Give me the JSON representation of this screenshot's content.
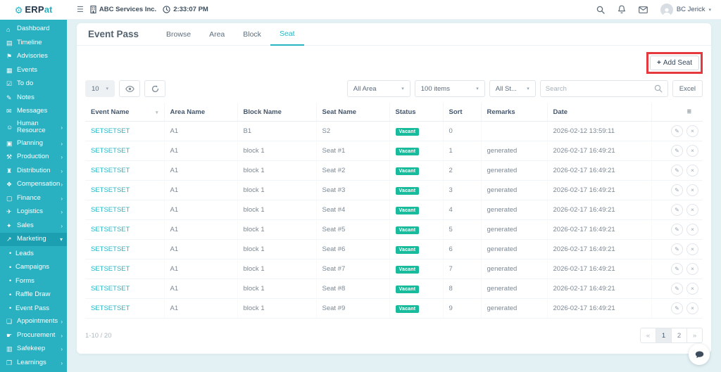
{
  "brand": {
    "primary": "ERP",
    "secondary": "at"
  },
  "topbar": {
    "company": "ABC Services Inc.",
    "time": "2:33:07 PM",
    "user": "BC Jerick"
  },
  "sidebar": {
    "items": [
      {
        "icon": "dashboard-icon",
        "label": "Dashboard"
      },
      {
        "icon": "timeline-icon",
        "label": "Timeline"
      },
      {
        "icon": "advisories-icon",
        "label": "Advisories"
      },
      {
        "icon": "events-icon",
        "label": "Events"
      },
      {
        "icon": "todo-icon",
        "label": "To do"
      },
      {
        "icon": "notes-icon",
        "label": "Notes"
      },
      {
        "icon": "messages-icon",
        "label": "Messages"
      },
      {
        "icon": "human-resource-icon",
        "label": "Human Resource",
        "chevron": true
      },
      {
        "icon": "planning-icon",
        "label": "Planning",
        "chevron": true
      },
      {
        "icon": "production-icon",
        "label": "Production",
        "chevron": true
      },
      {
        "icon": "distribution-icon",
        "label": "Distribution",
        "chevron": true
      },
      {
        "icon": "compensation-icon",
        "label": "Compensation",
        "chevron": true
      },
      {
        "icon": "finance-icon",
        "label": "Finance",
        "chevron": true
      },
      {
        "icon": "logistics-icon",
        "label": "Logistics",
        "chevron": true
      },
      {
        "icon": "sales-icon",
        "label": "Sales",
        "chevron": true
      },
      {
        "icon": "marketing-icon",
        "label": "Marketing",
        "chevron": true,
        "expanded": true,
        "active": true,
        "children": [
          "Leads",
          "Campaigns",
          "Forms",
          "Raffle Draw",
          "Event Pass"
        ]
      },
      {
        "icon": "appointments-icon",
        "label": "Appointments",
        "chevron": true
      },
      {
        "icon": "procurement-icon",
        "label": "Procurement",
        "chevron": true
      },
      {
        "icon": "safekeep-icon",
        "label": "Safekeep",
        "chevron": true
      },
      {
        "icon": "learnings-icon",
        "label": "Learnings",
        "chevron": true
      }
    ]
  },
  "page": {
    "title": "Event Pass",
    "tabs": [
      {
        "label": "Browse"
      },
      {
        "label": "Area"
      },
      {
        "label": "Block"
      },
      {
        "label": "Seat",
        "active": true
      }
    ],
    "add_seat_label": "Add Seat"
  },
  "toolbar": {
    "page_size": "10",
    "area_filter": "All Area",
    "items_filter": "100 items",
    "status_filter": "All St...",
    "search_placeholder": "Search",
    "excel_label": "Excel"
  },
  "table": {
    "columns": [
      "Event Name",
      "Area Name",
      "Block Name",
      "Seat Name",
      "Status",
      "Sort",
      "Remarks",
      "Date"
    ],
    "rows": [
      {
        "event": "SETSETSET",
        "area": "A1",
        "block": "B1",
        "seat": "S2",
        "status": "Vacant",
        "sort": "0",
        "remarks": "",
        "date": "2026-02-12 13:59:11"
      },
      {
        "event": "SETSETSET",
        "area": "A1",
        "block": "block 1",
        "seat": "Seat #1",
        "status": "Vacant",
        "sort": "1",
        "remarks": "generated",
        "date": "2026-02-17 16:49:21"
      },
      {
        "event": "SETSETSET",
        "area": "A1",
        "block": "block 1",
        "seat": "Seat #2",
        "status": "Vacant",
        "sort": "2",
        "remarks": "generated",
        "date": "2026-02-17 16:49:21"
      },
      {
        "event": "SETSETSET",
        "area": "A1",
        "block": "block 1",
        "seat": "Seat #3",
        "status": "Vacant",
        "sort": "3",
        "remarks": "generated",
        "date": "2026-02-17 16:49:21"
      },
      {
        "event": "SETSETSET",
        "area": "A1",
        "block": "block 1",
        "seat": "Seat #4",
        "status": "Vacant",
        "sort": "4",
        "remarks": "generated",
        "date": "2026-02-17 16:49:21"
      },
      {
        "event": "SETSETSET",
        "area": "A1",
        "block": "block 1",
        "seat": "Seat #5",
        "status": "Vacant",
        "sort": "5",
        "remarks": "generated",
        "date": "2026-02-17 16:49:21"
      },
      {
        "event": "SETSETSET",
        "area": "A1",
        "block": "block 1",
        "seat": "Seat #6",
        "status": "Vacant",
        "sort": "6",
        "remarks": "generated",
        "date": "2026-02-17 16:49:21"
      },
      {
        "event": "SETSETSET",
        "area": "A1",
        "block": "block 1",
        "seat": "Seat #7",
        "status": "Vacant",
        "sort": "7",
        "remarks": "generated",
        "date": "2026-02-17 16:49:21"
      },
      {
        "event": "SETSETSET",
        "area": "A1",
        "block": "block 1",
        "seat": "Seat #8",
        "status": "Vacant",
        "sort": "8",
        "remarks": "generated",
        "date": "2026-02-17 16:49:21"
      },
      {
        "event": "SETSETSET",
        "area": "A1",
        "block": "block 1",
        "seat": "Seat #9",
        "status": "Vacant",
        "sort": "9",
        "remarks": "generated",
        "date": "2026-02-17 16:49:21"
      }
    ]
  },
  "footer": {
    "range": "1-10 / 20",
    "prev": "«",
    "next": "»",
    "pages": [
      "1",
      "2"
    ],
    "active_page": "1"
  },
  "colors": {
    "sidebar_teal": "#2ab1c1",
    "sidebar_active": "#1c9fb0",
    "accent_teal": "#27b5c3",
    "badge_green": "#18bc9c",
    "highlight_red": "#e5393e"
  }
}
